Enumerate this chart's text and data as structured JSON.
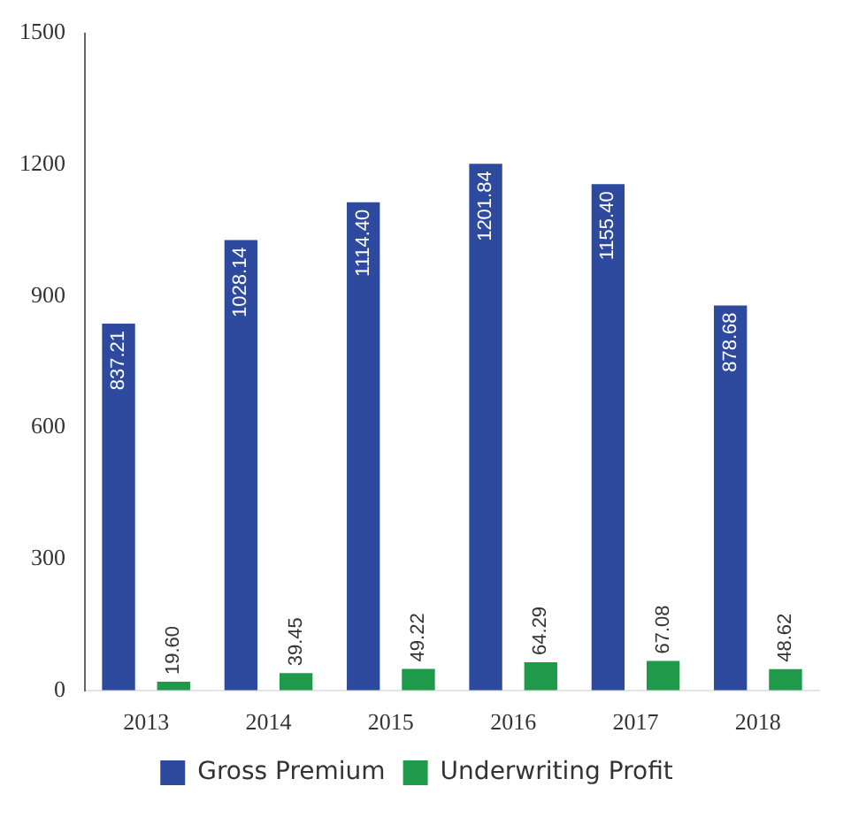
{
  "chart_data": {
    "type": "bar",
    "categories": [
      "2013",
      "2014",
      "2015",
      "2016",
      "2017",
      "2018"
    ],
    "series": [
      {
        "name": "Gross Premium",
        "color": "#2e4a9e",
        "values": [
          837.21,
          1028.14,
          1114.4,
          1201.84,
          1155.4,
          878.68
        ]
      },
      {
        "name": "Underwriting Profit",
        "color": "#1f9a4a",
        "values": [
          19.6,
          39.45,
          49.22,
          64.29,
          67.08,
          48.62
        ]
      }
    ],
    "value_labels": [
      [
        "837.21",
        "1028.14",
        "1114.40",
        "1201.84",
        "1155.40",
        "878.68"
      ],
      [
        "19.60",
        "39.45",
        "49.22",
        "64.29",
        "67.08",
        "48.62"
      ]
    ],
    "ylim": [
      0,
      1500
    ],
    "yticks": [
      0,
      300,
      600,
      900,
      1200,
      1500
    ],
    "grid": false,
    "legend": "bottom"
  }
}
